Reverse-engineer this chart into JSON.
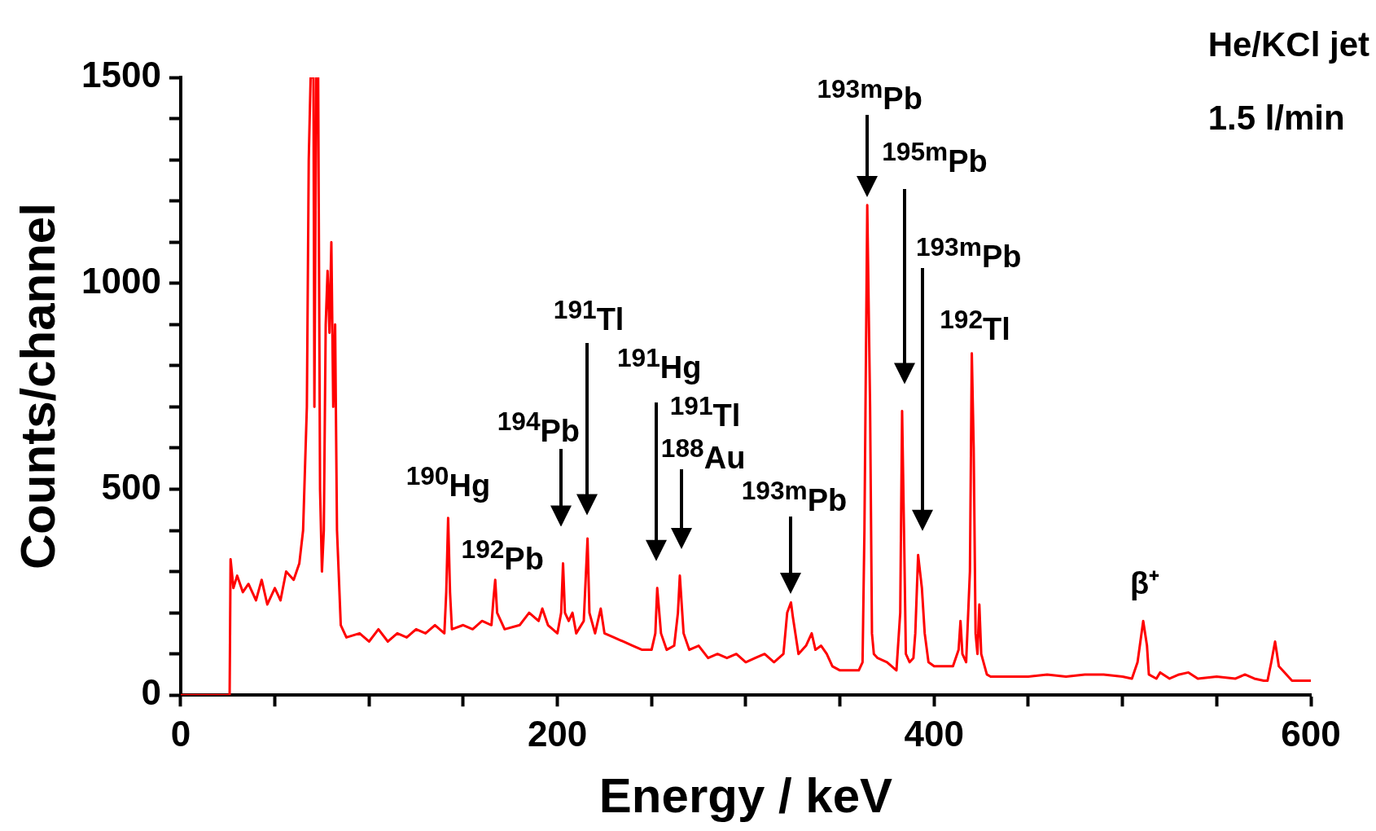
{
  "chart_data": {
    "type": "line",
    "xlabel": "Energy / keV",
    "ylabel": "Counts/channel",
    "xlim": [
      0,
      600
    ],
    "ylim": [
      0,
      1500
    ],
    "xticks": [
      0,
      {
        "value": 50,
        "label": null
      },
      {
        "value": 100,
        "label": null
      },
      {
        "value": 150,
        "label": null
      },
      200,
      {
        "value": 250,
        "label": null
      },
      {
        "value": 300,
        "label": null
      },
      {
        "value": 350,
        "label": null
      },
      400,
      {
        "value": 450,
        "label": null
      },
      {
        "value": 500,
        "label": null
      },
      {
        "value": 550,
        "label": null
      },
      600
    ],
    "yticks": [
      0,
      {
        "value": 100,
        "label": null
      },
      {
        "value": 200,
        "label": null
      },
      {
        "value": 300,
        "label": null
      },
      {
        "value": 400,
        "label": null
      },
      500,
      {
        "value": 600,
        "label": null
      },
      {
        "value": 700,
        "label": null
      },
      {
        "value": 800,
        "label": null
      },
      {
        "value": 900,
        "label": null
      },
      1000,
      {
        "value": 1100,
        "label": null
      },
      {
        "value": 1200,
        "label": null
      },
      {
        "value": 1300,
        "label": null
      },
      {
        "value": 1400,
        "label": null
      },
      1500
    ],
    "grid": false,
    "legend": false,
    "marker": "none",
    "line_style": "solid",
    "series": [
      {
        "color": "#ff0000",
        "x": [
          0,
          25,
          26,
          26.5,
          28,
          30,
          33,
          36,
          40,
          43,
          46,
          50,
          53,
          56,
          60,
          63,
          65,
          67,
          68,
          69,
          70.5,
          71,
          72,
          73,
          74,
          75,
          76,
          77,
          78,
          79,
          80,
          81,
          82,
          83,
          85,
          88,
          95,
          100,
          105,
          110,
          115,
          120,
          125,
          130,
          135,
          140,
          141,
          142,
          143,
          144,
          150,
          155,
          160,
          165,
          166,
          167,
          168,
          172,
          180,
          185,
          190,
          192,
          195,
          200,
          202,
          203,
          204,
          206,
          208,
          210,
          214,
          216,
          217,
          220,
          223,
          225,
          230,
          235,
          240,
          245,
          250,
          252,
          253,
          255,
          258,
          262,
          264,
          265,
          267,
          270,
          275,
          280,
          285,
          290,
          295,
          300,
          305,
          310,
          315,
          320,
          322,
          324,
          325,
          328,
          332,
          335,
          337,
          340,
          343,
          346,
          350,
          355,
          360,
          362,
          363,
          364.5,
          366,
          367,
          368,
          370,
          375,
          380,
          382,
          383,
          384,
          385,
          387,
          389,
          390,
          391.5,
          392.5,
          393.5,
          395,
          397,
          400,
          405,
          410,
          413,
          414,
          415,
          417,
          419,
          420,
          421,
          422,
          423,
          424,
          425,
          428,
          430,
          440,
          450,
          460,
          470,
          480,
          490,
          500,
          505,
          508,
          511,
          513,
          514,
          518,
          520,
          525,
          530,
          535,
          540,
          550,
          560,
          565,
          570,
          575,
          577,
          579,
          581,
          583,
          590,
          600
        ],
        "values": [
          0,
          0,
          0,
          330,
          260,
          290,
          250,
          270,
          230,
          280,
          220,
          260,
          230,
          300,
          280,
          320,
          400,
          700,
          1300,
          1500,
          1500,
          700,
          1500,
          1500,
          500,
          300,
          400,
          900,
          1030,
          880,
          1100,
          700,
          900,
          400,
          170,
          140,
          150,
          130,
          160,
          130,
          150,
          140,
          160,
          150,
          170,
          150,
          250,
          430,
          250,
          160,
          170,
          160,
          180,
          170,
          230,
          280,
          200,
          160,
          170,
          200,
          180,
          210,
          170,
          150,
          200,
          320,
          200,
          180,
          200,
          150,
          180,
          380,
          200,
          150,
          210,
          150,
          140,
          130,
          120,
          110,
          110,
          150,
          260,
          150,
          110,
          120,
          200,
          290,
          150,
          110,
          120,
          90,
          100,
          90,
          100,
          80,
          90,
          100,
          80,
          100,
          200,
          225,
          190,
          100,
          120,
          150,
          110,
          120,
          100,
          70,
          60,
          60,
          60,
          80,
          400,
          1190,
          700,
          150,
          100,
          90,
          80,
          60,
          200,
          690,
          400,
          100,
          80,
          90,
          150,
          340,
          300,
          260,
          150,
          80,
          70,
          70,
          70,
          110,
          180,
          100,
          80,
          300,
          830,
          600,
          150,
          100,
          220,
          100,
          50,
          45,
          45,
          45,
          50,
          45,
          50,
          50,
          45,
          40,
          80,
          180,
          120,
          50,
          40,
          55,
          40,
          50,
          55,
          40,
          45,
          40,
          50,
          40,
          35,
          35,
          80,
          130,
          70,
          35,
          35
        ]
      }
    ],
    "annotations": [
      "He/KCl jet",
      "1.5 l/min",
      {
        "text": "$^{193m}$Pb",
        "x": 364.5,
        "y": 1190
      },
      "$^{195m}$Pb",
      "$^{193m}$Pb",
      {
        "text": "$^{192}$Tl",
        "x": 420,
        "y": 830
      },
      "$^{191}$Tl",
      "$^{191}$Hg",
      "$^{191}$Tl",
      "$^{188}$Au",
      "$^{194}$Pb",
      {
        "text": "$^{190}$Hg",
        "x": 142,
        "y": 430
      },
      {
        "text": "$^{192}$Pb",
        "x": 167,
        "y": 280
      },
      {
        "text": "$^{193m}$Pb",
        "x": 324,
        "y": 225
      },
      {
        "text": "β⁺",
        "x": 511,
        "y": 180
      }
    ]
  }
}
